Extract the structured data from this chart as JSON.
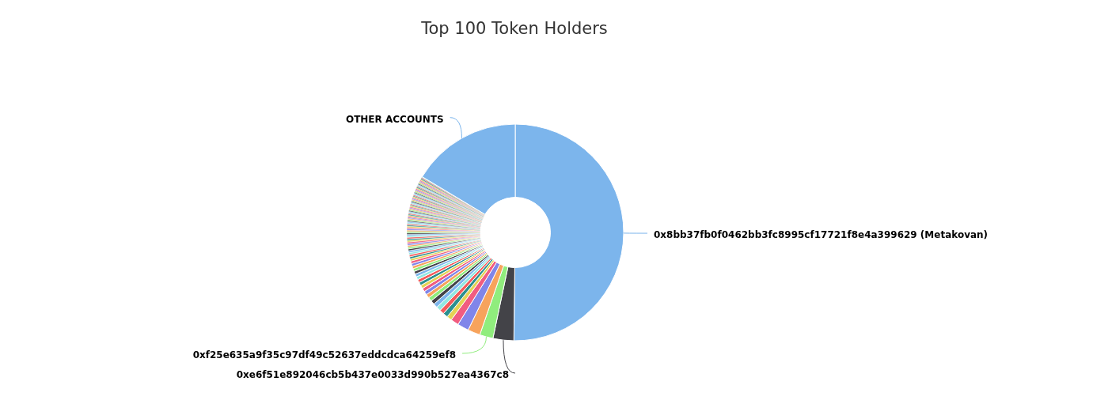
{
  "chart_data": {
    "type": "donut",
    "title": "Top 100 Token Holders",
    "categories": [
      "0x8bb37fb0f0462bb3fc8995cf17721f8e4a399629 (Metakovan)",
      "0xe6f51e892046cb5b437e0033d990b527ea4367c8",
      "0xf25e635a9f35c97df49c52637eddcdca64259ef8",
      null,
      null,
      null,
      null,
      null,
      null,
      null,
      null,
      null,
      null,
      null,
      null,
      null,
      null,
      null,
      null,
      null,
      null,
      null,
      null,
      null,
      null,
      null,
      null,
      null,
      null,
      null,
      null,
      null,
      null,
      null,
      null,
      null,
      null,
      null,
      null,
      null,
      null,
      null,
      null,
      null,
      null,
      null,
      null,
      null,
      null,
      null,
      null,
      null,
      null,
      null,
      null,
      null,
      null,
      null,
      null,
      null,
      null,
      null,
      null,
      null,
      null,
      null,
      null,
      null,
      null,
      null,
      null,
      null,
      null,
      null,
      null,
      null,
      null,
      null,
      null,
      null,
      null,
      null,
      null,
      null,
      null,
      null,
      null,
      null,
      null,
      null,
      null,
      null,
      null,
      null,
      null,
      null,
      null,
      null,
      null,
      null,
      "OTHER ACCOUNTS"
    ],
    "values": [
      50.2,
      3.1,
      2.0,
      1.85,
      1.7,
      1.2,
      0.75,
      0.72,
      0.69,
      0.66,
      0.63,
      0.61,
      0.59,
      0.57,
      0.55,
      0.53,
      0.51,
      0.49,
      0.47,
      0.45,
      0.44,
      0.43,
      0.42,
      0.4,
      0.39,
      0.38,
      0.33,
      0.32,
      0.31,
      0.3,
      0.29,
      0.28,
      0.27,
      0.26,
      0.25,
      0.24,
      0.24,
      0.23,
      0.23,
      0.22,
      0.22,
      0.21,
      0.21,
      0.2,
      0.2,
      0.19,
      0.19,
      0.18,
      0.18,
      0.17,
      0.17,
      0.16,
      0.16,
      0.16,
      0.15,
      0.15,
      0.15,
      0.15,
      0.15,
      0.15,
      0.14,
      0.14,
      0.14,
      0.14,
      0.14,
      0.14,
      0.14,
      0.14,
      0.14,
      0.14,
      0.14,
      0.14,
      0.14,
      0.14,
      0.14,
      0.14,
      0.14,
      0.14,
      0.14,
      0.14,
      0.14,
      0.14,
      0.14,
      0.14,
      0.14,
      0.14,
      0.14,
      0.14,
      0.14,
      0.14,
      0.14,
      0.14,
      0.14,
      0.14,
      0.14,
      0.14,
      0.14,
      0.14,
      0.14,
      0.14,
      16.4
    ],
    "colors": [
      "#7cb5ec",
      "#434348",
      "#90ed7d",
      "#f7a35c",
      "#8085e9",
      "#f15c80",
      "#e4d354",
      "#2b908f",
      "#f45b5b",
      "#91e8e1",
      "#7cb5ec",
      "#434348",
      "#90ed7d",
      "#f7a35c",
      "#8085e9",
      "#f15c80",
      "#e4d354",
      "#2b908f",
      "#f45b5b",
      "#91e8e1",
      "#7cb5ec",
      "#434348",
      "#90ed7d",
      "#f7a35c",
      "#8085e9",
      "#f15c80",
      "#e4d354",
      "#2b908f",
      "#f45b5b",
      "#91e8e1",
      "#7cb5ec",
      "#434348",
      "#90ed7d",
      "#f7a35c",
      "#8085e9",
      "#f15c80",
      "#e4d354",
      "#2b908f",
      "#f45b5b",
      "#91e8e1",
      "#7cb5ec",
      "#434348",
      "#90ed7d",
      "#f7a35c",
      "#8085e9",
      "#f15c80",
      "#e4d354",
      "#2b908f",
      "#f45b5b",
      "#91e8e1",
      "#7cb5ec",
      "#434348",
      "#90ed7d",
      "#f7a35c",
      "#8085e9",
      "#f15c80",
      "#e4d354",
      "#2b908f",
      "#f45b5b",
      "#91e8e1",
      "#7cb5ec",
      "#434348",
      "#90ed7d",
      "#f7a35c",
      "#8085e9",
      "#f15c80",
      "#e4d354",
      "#2b908f",
      "#f45b5b",
      "#91e8e1",
      "#7cb5ec",
      "#434348",
      "#90ed7d",
      "#f7a35c",
      "#8085e9",
      "#f15c80",
      "#e4d354",
      "#2b908f",
      "#f45b5b",
      "#91e8e1",
      "#7cb5ec",
      "#434348",
      "#90ed7d",
      "#f7a35c",
      "#8085e9",
      "#f15c80",
      "#e4d354",
      "#2b908f",
      "#f45b5b",
      "#91e8e1",
      "#7cb5ec",
      "#434348",
      "#90ed7d",
      "#f7a35c",
      "#8085e9",
      "#f15c80",
      "#e4d354",
      "#2b908f",
      "#f45b5b",
      "#91e8e1",
      "#7cb5ec"
    ]
  }
}
